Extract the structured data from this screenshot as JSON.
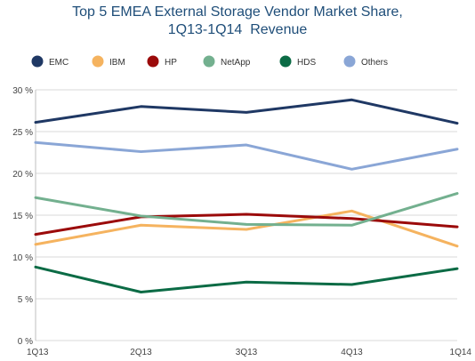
{
  "chart_data": {
    "type": "line",
    "title_lines": [
      "Top 5 EMEA External Storage Vendor Market Share,",
      "1Q13-1Q14  Revenue"
    ],
    "categories": [
      "1Q13",
      "2Q13",
      "3Q13",
      "4Q13",
      "1Q14"
    ],
    "yticks": [
      "0 %",
      "5 %",
      "10 %",
      "15 %",
      "20 %",
      "25 %",
      "30 %"
    ],
    "ylim": [
      0,
      30
    ],
    "grid": "horizontal",
    "legend_position": "top",
    "series": [
      {
        "name": "EMC",
        "color": "#1f3864",
        "values": [
          26.1,
          28.0,
          27.3,
          28.8,
          26.0
        ]
      },
      {
        "name": "IBM",
        "color": "#f5b35f",
        "values": [
          11.5,
          13.8,
          13.3,
          15.5,
          11.3
        ]
      },
      {
        "name": "HP",
        "color": "#9b0a0a",
        "values": [
          12.7,
          14.8,
          15.1,
          14.6,
          13.6
        ]
      },
      {
        "name": "NetApp",
        "color": "#73b08f",
        "values": [
          17.1,
          14.9,
          13.9,
          13.8,
          17.6
        ]
      },
      {
        "name": "HDS",
        "color": "#0b6b45",
        "values": [
          8.8,
          5.8,
          7.0,
          6.7,
          8.6
        ]
      },
      {
        "name": "Others",
        "color": "#8aa6d6",
        "values": [
          23.7,
          22.6,
          23.4,
          20.5,
          22.9
        ]
      }
    ]
  }
}
